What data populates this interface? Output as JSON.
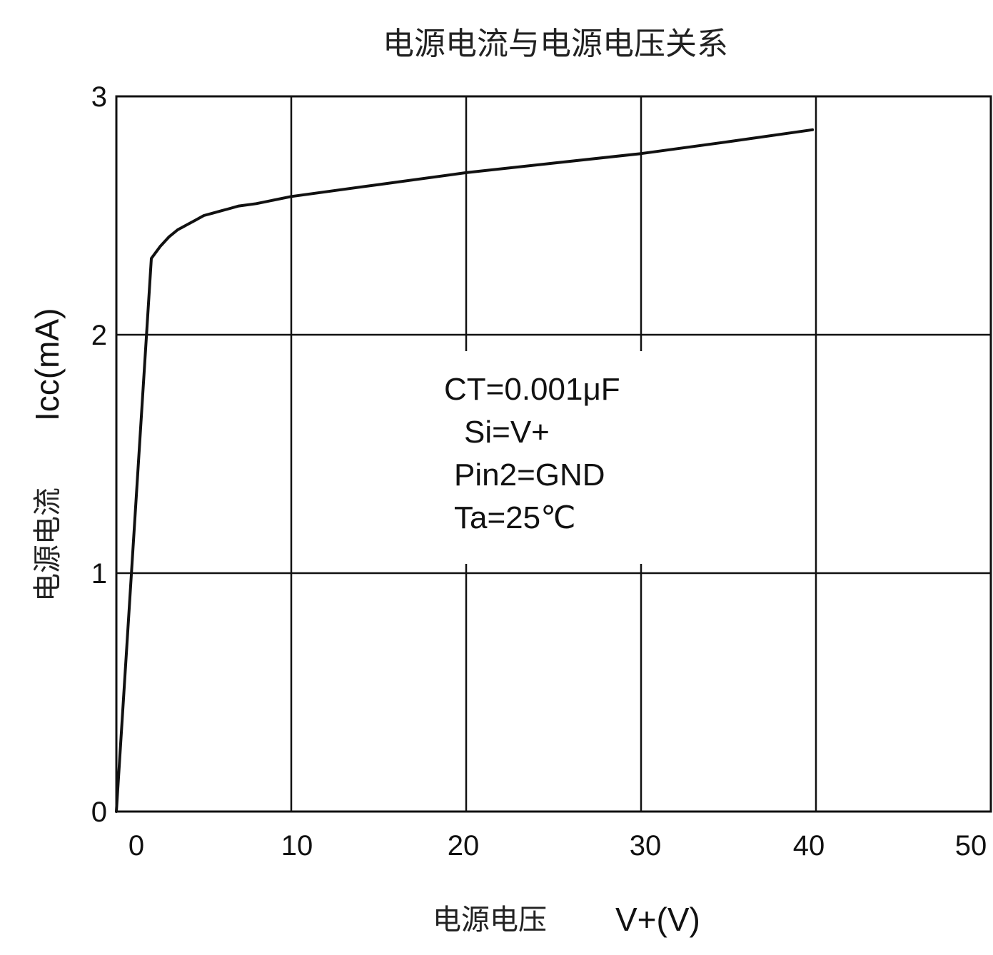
{
  "chart_data": {
    "type": "line",
    "title": "电源电流与电源电压关系",
    "xlabel": {
      "name": "电源电压",
      "unit": "V+(V)"
    },
    "ylabel": {
      "name": "电源电流",
      "unit": "Icc(mA)"
    },
    "xlim": [
      0,
      50
    ],
    "ylim": [
      0,
      3
    ],
    "x_ticks": [
      "0",
      "10",
      "20",
      "30",
      "40",
      "50"
    ],
    "y_ticks": [
      "0",
      "1",
      "2",
      "3"
    ],
    "grid": true,
    "series": [
      {
        "points": [
          [
            0,
            0
          ],
          [
            2.0,
            2.32
          ],
          [
            2.5,
            2.37
          ],
          [
            3.0,
            2.41
          ],
          [
            3.5,
            2.44
          ],
          [
            4.0,
            2.46
          ],
          [
            4.5,
            2.48
          ],
          [
            5.0,
            2.5
          ],
          [
            5.5,
            2.51
          ],
          [
            6.0,
            2.52
          ],
          [
            6.5,
            2.53
          ],
          [
            7.0,
            2.54
          ],
          [
            8.0,
            2.55
          ],
          [
            10.0,
            2.58
          ],
          [
            15.0,
            2.63
          ],
          [
            20.0,
            2.68
          ],
          [
            25.0,
            2.72
          ],
          [
            30.0,
            2.76
          ],
          [
            35.0,
            2.81
          ],
          [
            39.8,
            2.86
          ]
        ]
      }
    ],
    "annotation": [
      "CT=0.001μF",
      "Si=V+",
      "Pin2=GND",
      "Ta=25℃"
    ]
  }
}
